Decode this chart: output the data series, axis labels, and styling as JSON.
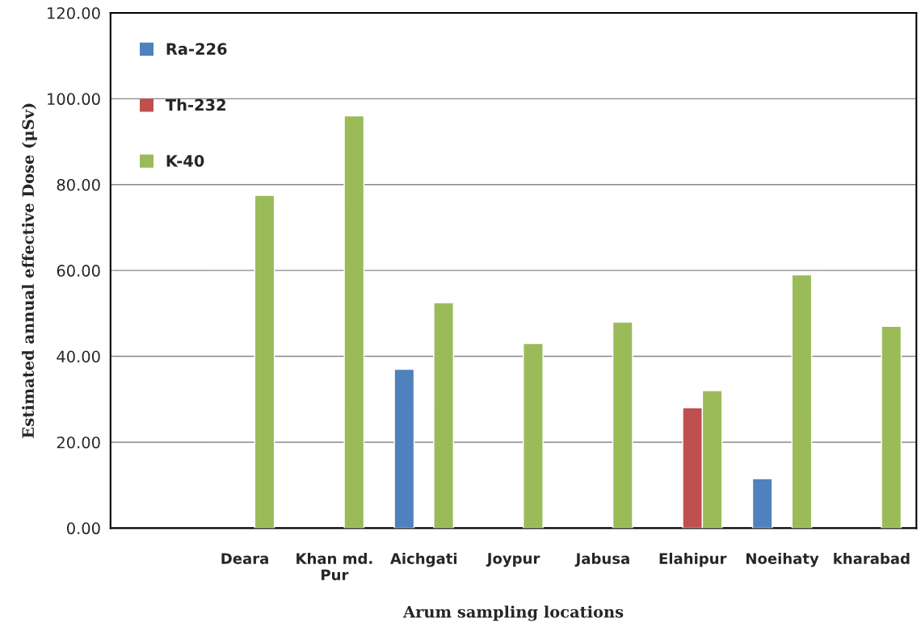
{
  "chart_data": {
    "type": "bar",
    "xlabel": "Arum sampling locations",
    "ylabel": "Estimated annual effective Dose (μSv)",
    "categories": [
      null,
      "Deara",
      "Khan md.\nPur",
      "Aichgati",
      "Joypur",
      "Jabusa",
      "Elahipur",
      "Noeihaty",
      "kharabad"
    ],
    "series": [
      {
        "name": "Ra-226",
        "color": "#4f81bd",
        "values": [
          null,
          null,
          null,
          37,
          null,
          null,
          null,
          11.5,
          null
        ]
      },
      {
        "name": "Th-232",
        "color": "#c0504d",
        "values": [
          null,
          null,
          null,
          null,
          null,
          null,
          28,
          null,
          null
        ]
      },
      {
        "name": "K-40",
        "color": "#9bbb59",
        "values": [
          null,
          77.5,
          96,
          52.5,
          43,
          48,
          32,
          59,
          47
        ]
      }
    ],
    "ylim": [
      0,
      120
    ],
    "yticks": [
      {
        "value": 0,
        "label": "0.00"
      },
      {
        "value": 20,
        "label": "20.00"
      },
      {
        "value": 40,
        "label": "40.00"
      },
      {
        "value": 60,
        "label": "60.00"
      },
      {
        "value": 80,
        "label": "80.00"
      },
      {
        "value": 100,
        "label": "100.00"
      },
      {
        "value": 120,
        "label": "120.00"
      }
    ],
    "grid": "y",
    "legend": "top left"
  }
}
